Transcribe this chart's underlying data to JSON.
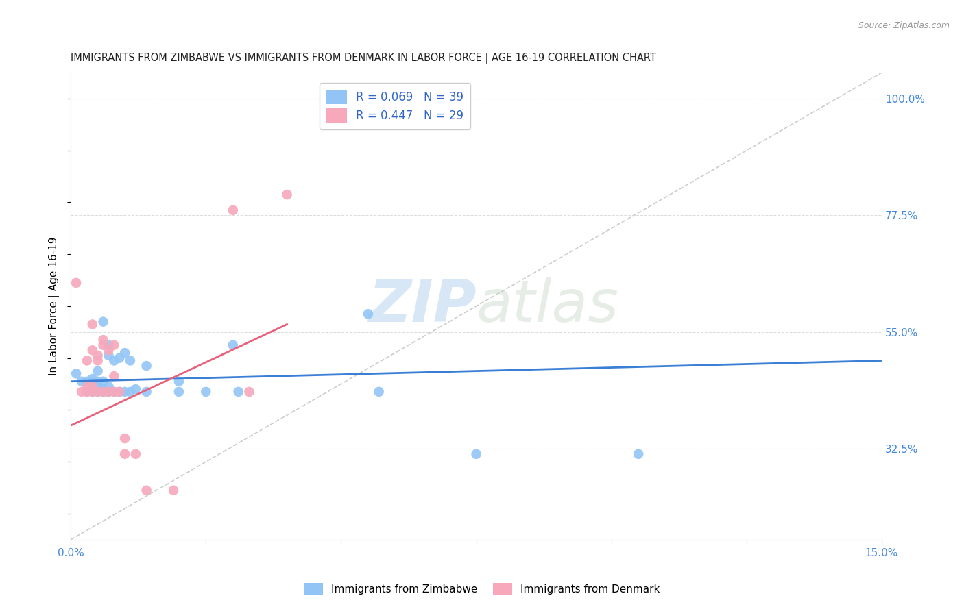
{
  "title": "IMMIGRANTS FROM ZIMBABWE VS IMMIGRANTS FROM DENMARK IN LABOR FORCE | AGE 16-19 CORRELATION CHART",
  "source": "Source: ZipAtlas.com",
  "ylabel": "In Labor Force | Age 16-19",
  "xlim": [
    0.0,
    0.15
  ],
  "ylim": [
    0.15,
    1.05
  ],
  "yticks": [
    0.325,
    0.55,
    0.775,
    1.0
  ],
  "ytick_labels": [
    "32.5%",
    "55.0%",
    "77.5%",
    "100.0%"
  ],
  "xticks": [
    0.0,
    0.025,
    0.05,
    0.075,
    0.1,
    0.125,
    0.15
  ],
  "xtick_labels": [
    "0.0%",
    "",
    "",
    "",
    "",
    "",
    "15.0%"
  ],
  "zimbabwe_color": "#92c5f5",
  "denmark_color": "#f7a8bb",
  "zimbabwe_R": 0.069,
  "zimbabwe_N": 39,
  "denmark_R": 0.447,
  "denmark_N": 29,
  "diagonal_color": "#cccccc",
  "zimbabwe_line_color": "#3a7fd5",
  "denmark_line_color": "#e8607a",
  "watermark_zip": "ZIP",
  "watermark_atlas": "atlas",
  "zimbabwe_scatter": [
    [
      0.001,
      0.47
    ],
    [
      0.002,
      0.455
    ],
    [
      0.003,
      0.435
    ],
    [
      0.003,
      0.455
    ],
    [
      0.004,
      0.435
    ],
    [
      0.004,
      0.455
    ],
    [
      0.004,
      0.46
    ],
    [
      0.005,
      0.435
    ],
    [
      0.005,
      0.445
    ],
    [
      0.005,
      0.455
    ],
    [
      0.005,
      0.475
    ],
    [
      0.006,
      0.435
    ],
    [
      0.006,
      0.44
    ],
    [
      0.006,
      0.455
    ],
    [
      0.006,
      0.57
    ],
    [
      0.007,
      0.435
    ],
    [
      0.007,
      0.445
    ],
    [
      0.007,
      0.505
    ],
    [
      0.007,
      0.525
    ],
    [
      0.008,
      0.435
    ],
    [
      0.008,
      0.495
    ],
    [
      0.009,
      0.435
    ],
    [
      0.009,
      0.5
    ],
    [
      0.01,
      0.435
    ],
    [
      0.01,
      0.51
    ],
    [
      0.011,
      0.435
    ],
    [
      0.011,
      0.495
    ],
    [
      0.012,
      0.44
    ],
    [
      0.014,
      0.435
    ],
    [
      0.014,
      0.485
    ],
    [
      0.02,
      0.435
    ],
    [
      0.02,
      0.455
    ],
    [
      0.025,
      0.435
    ],
    [
      0.03,
      0.525
    ],
    [
      0.031,
      0.435
    ],
    [
      0.055,
      0.585
    ],
    [
      0.057,
      0.435
    ],
    [
      0.075,
      0.315
    ],
    [
      0.105,
      0.315
    ]
  ],
  "denmark_scatter": [
    [
      0.001,
      0.645
    ],
    [
      0.002,
      0.435
    ],
    [
      0.003,
      0.435
    ],
    [
      0.003,
      0.445
    ],
    [
      0.003,
      0.495
    ],
    [
      0.004,
      0.435
    ],
    [
      0.004,
      0.445
    ],
    [
      0.004,
      0.515
    ],
    [
      0.004,
      0.565
    ],
    [
      0.005,
      0.435
    ],
    [
      0.005,
      0.495
    ],
    [
      0.005,
      0.505
    ],
    [
      0.006,
      0.435
    ],
    [
      0.006,
      0.525
    ],
    [
      0.006,
      0.535
    ],
    [
      0.007,
      0.435
    ],
    [
      0.007,
      0.515
    ],
    [
      0.008,
      0.435
    ],
    [
      0.008,
      0.465
    ],
    [
      0.008,
      0.525
    ],
    [
      0.009,
      0.435
    ],
    [
      0.01,
      0.315
    ],
    [
      0.01,
      0.345
    ],
    [
      0.012,
      0.315
    ],
    [
      0.014,
      0.245
    ],
    [
      0.019,
      0.245
    ],
    [
      0.03,
      0.785
    ],
    [
      0.033,
      0.435
    ],
    [
      0.04,
      0.815
    ]
  ],
  "zimbabwe_line": [
    [
      0.0,
      0.455
    ],
    [
      0.15,
      0.495
    ]
  ],
  "denmark_line": [
    [
      0.0,
      0.37
    ],
    [
      0.04,
      0.565
    ]
  ]
}
